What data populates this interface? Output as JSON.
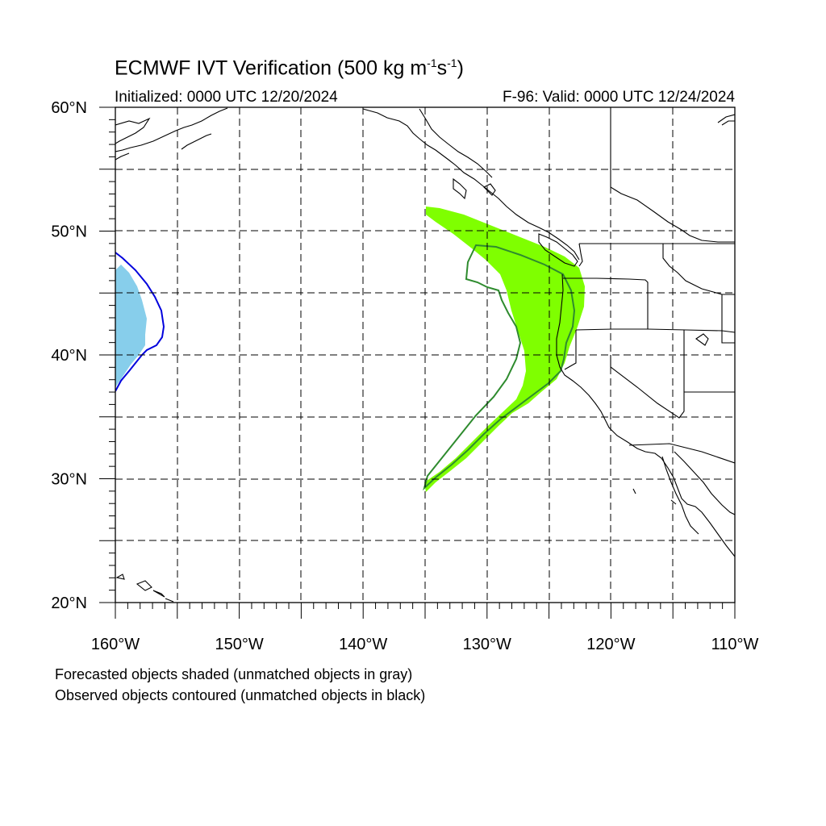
{
  "title": {
    "prefix": "ECMWF IVT Verification (500 kg m",
    "exp1": "-1",
    "mid": "s",
    "exp2": "-1",
    "suffix": ")"
  },
  "initialized": "Initialized: 0000 UTC 12/20/2024",
  "valid": "F-96: Valid: 0000 UTC 12/24/2024",
  "map": {
    "lon_range": [
      -160,
      -110
    ],
    "lat_range": [
      20,
      60
    ],
    "grid_style": "dashed",
    "lat_ticks": [
      {
        "value": 60,
        "label": "60°N"
      },
      {
        "value": 50,
        "label": "50°N"
      },
      {
        "value": 40,
        "label": "40°N"
      },
      {
        "value": 30,
        "label": "30°N"
      },
      {
        "value": 20,
        "label": "20°N"
      }
    ],
    "lon_ticks": [
      {
        "value": -160,
        "label": "160°W"
      },
      {
        "value": -150,
        "label": "150°W"
      },
      {
        "value": -140,
        "label": "140°W"
      },
      {
        "value": -130,
        "label": "130°W"
      },
      {
        "value": -120,
        "label": "120°W"
      },
      {
        "value": -110,
        "label": "110°W"
      }
    ],
    "colors": {
      "matched_forecast_fill": "#7fff00",
      "matched_observed_contour": "#2e8b2e",
      "west_forecast_fill": "#87ceeb",
      "west_observed_contour": "#0000dd",
      "coastline": "#000000"
    }
  },
  "notes": [
    "Forecasted objects shaded (unmatched objects in gray)",
    "Observed objects contoured (unmatched objects in black)"
  ]
}
